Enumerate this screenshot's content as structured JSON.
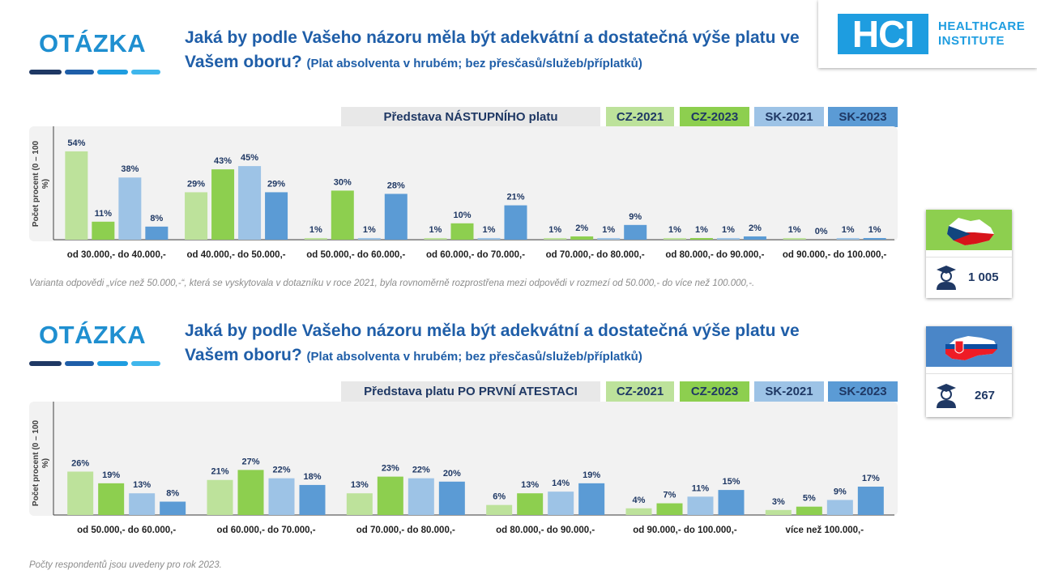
{
  "logo": {
    "mark": "HCI",
    "line1": "HEALTHCARE",
    "line2": "INSTITUTE"
  },
  "sections": [
    {
      "heading": "OTÁZKA",
      "question_main": "Jaká by podle Vašeho názoru měla být adekvátní a dostatečná výše platu ve Vašem oboru?",
      "question_sub": "(Plat absolventa  v hrubém;  bez přesčasů/služeb/příplatků)",
      "legend_title": "Představa NÁSTUPNÍHO platu",
      "ylabel": "Počet procent (0 – 100 %)"
    },
    {
      "heading": "OTÁZKA",
      "question_main": "Jaká by podle Vašeho názoru měla být adekvátní a dostatečná výše platu ve Vašem oboru?",
      "question_sub": "(Plat absolventa  v hrubém;  bez přesčasů/služeb/příplatků)",
      "legend_title": "Představa platu PO PRVNÍ ATESTACI",
      "ylabel": "Počet procent (0 – 100 %)"
    }
  ],
  "legend": [
    {
      "name": "CZ-2021",
      "color": "#bde29b"
    },
    {
      "name": "CZ-2023",
      "color": "#8dcf4f"
    },
    {
      "name": "SK-2021",
      "color": "#9dc3e6"
    },
    {
      "name": "SK-2023",
      "color": "#5b9bd5"
    }
  ],
  "note_top": "Varianta odpovědi „více než 50.000,-“, která se vyskytovala v dotazníku v roce 2021, byla rovnoměrně  rozprostřena mezi odpovědi v rozmezí od 50.000,- do více než 100.000,-.",
  "note_bottom": "Počty respondentů  jsou uvedeny  pro rok 2023.",
  "cards": [
    {
      "country": "CZ",
      "flag_icon": "czech-map-flag-icon",
      "count": "1 005",
      "top_color": "#8dcf4f"
    },
    {
      "country": "SK",
      "flag_icon": "slovak-map-flag-icon",
      "count": "267",
      "top_color": "#4a86c8"
    }
  ],
  "chart_data": [
    {
      "type": "bar",
      "title": "Představa NÁSTUPNÍHO platu",
      "ylabel": "Počet procent (0 – 100 %)",
      "ylim": [
        0,
        60
      ],
      "categories": [
        "od 30.000,- do 40.000,-",
        "od 40.000,- do 50.000,-",
        "od 50.000,- do 60.000,-",
        "od 60.000,- do 70.000,-",
        "od 70.000,- do 80.000,-",
        "od 80.000,- do 90.000,-",
        "od 90.000,- do 100.000,-"
      ],
      "series": [
        {
          "name": "CZ-2021",
          "values": [
            54,
            29,
            1,
            1,
            1,
            1,
            1
          ]
        },
        {
          "name": "CZ-2023",
          "values": [
            11,
            43,
            30,
            10,
            2,
            1,
            0
          ]
        },
        {
          "name": "SK-2021",
          "values": [
            38,
            45,
            1,
            1,
            1,
            1,
            1
          ]
        },
        {
          "name": "SK-2023",
          "values": [
            8,
            29,
            28,
            21,
            9,
            2,
            1
          ]
        }
      ]
    },
    {
      "type": "bar",
      "title": "Představa platu PO PRVNÍ ATESTACI",
      "ylabel": "Počet procent (0 – 100 %)",
      "ylim": [
        0,
        60
      ],
      "categories": [
        "od 50.000,- do 60.000,-",
        "od 60.000,- do 70.000,-",
        "od 70.000,- do 80.000,-",
        "od 80.000,- do 90.000,-",
        "od 90.000,- do 100.000,-",
        "více než 100.000,-"
      ],
      "series": [
        {
          "name": "CZ-2021",
          "values": [
            26,
            21,
            13,
            6,
            4,
            3
          ]
        },
        {
          "name": "CZ-2023",
          "values": [
            19,
            27,
            23,
            13,
            7,
            5
          ]
        },
        {
          "name": "SK-2021",
          "values": [
            13,
            22,
            22,
            14,
            11,
            9
          ]
        },
        {
          "name": "SK-2023",
          "values": [
            8,
            18,
            20,
            19,
            15,
            17
          ]
        }
      ]
    }
  ]
}
